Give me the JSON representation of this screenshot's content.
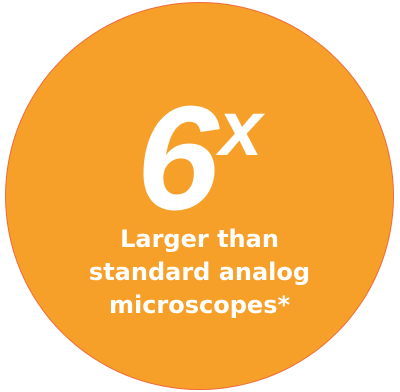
{
  "badge": {
    "number": "6",
    "unit": "x",
    "caption_lines": [
      "Larger than",
      "standard analog",
      "microscopes*"
    ],
    "colors": {
      "fill": "#f7a029",
      "border": "#f16a3a",
      "text": "#ffffff"
    }
  }
}
